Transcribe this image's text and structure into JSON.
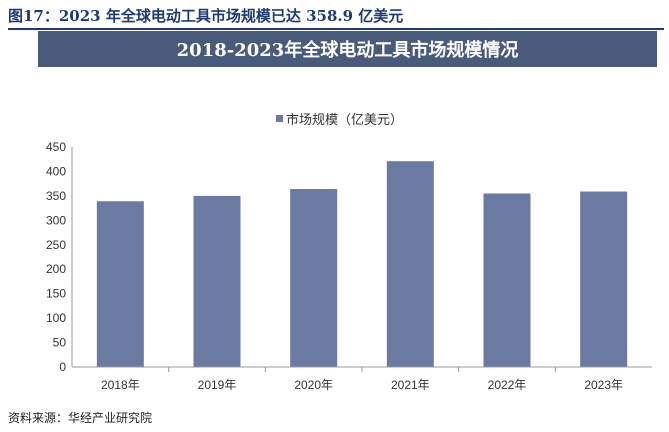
{
  "figure_caption": "图17：2023 年全球电动工具市场规模已达 358.9 亿美元",
  "source_note": "资料来源：华经产业研究院",
  "colors": {
    "bar": "#6b7aa1",
    "banner": "#4a5a7a",
    "caption": "#1f3a73"
  },
  "chart_data": {
    "type": "bar",
    "title": "2018-2023年全球电动工具市场规模情况",
    "categories": [
      "2018年",
      "2019年",
      "2020年",
      "2021年",
      "2022年",
      "2023年"
    ],
    "series": [
      {
        "name": "市场规模（亿美元）",
        "values": [
          339,
          350,
          364,
          421,
          355,
          358.9
        ]
      }
    ],
    "ylim": [
      0,
      450
    ],
    "yticks": [
      0,
      50,
      100,
      150,
      200,
      250,
      300,
      350,
      400,
      450
    ],
    "grid": false,
    "legend": "top-center"
  }
}
